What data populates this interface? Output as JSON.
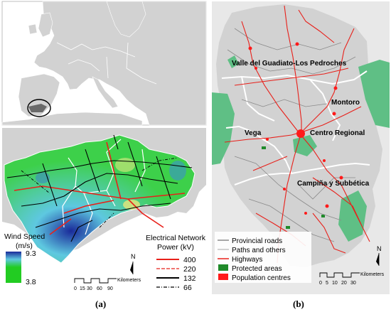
{
  "panel_a": {
    "caption": "(a)",
    "legend_wind": {
      "title": "Wind Speed",
      "unit": "(m/s)",
      "max": "9.3",
      "min": "3.8",
      "color_high": "#1a2a9a",
      "color_mid": "#5ec8e0",
      "color_low": "#22cc22"
    },
    "legend_network": {
      "title": "Electrical Network",
      "subtitle": "Power (kV)",
      "items": [
        {
          "label": "400",
          "color": "#e8201a",
          "style": "solid-thick"
        },
        {
          "label": "220",
          "color": "#e8201a",
          "style": "dash"
        },
        {
          "label": "132",
          "color": "#000000",
          "style": "solid"
        },
        {
          "label": "66",
          "color": "#000000",
          "style": "dashdot"
        }
      ]
    },
    "scale": {
      "ticks": [
        "0",
        "15",
        "30",
        "60",
        "90"
      ],
      "unit": "Kilometers"
    },
    "north": "N"
  },
  "panel_b": {
    "caption": "(b)",
    "regions": [
      "Valle del Guadiato-Los Pedroches",
      "Montoro",
      "Vega",
      "Centro Regional",
      "Campiña y Subbética"
    ],
    "legend": [
      {
        "label": "Provincial  roads",
        "color": "#8a8a8a",
        "kind": "line"
      },
      {
        "label": "Paths and others",
        "color": "#b5b5b5",
        "kind": "line"
      },
      {
        "label": "Highways",
        "color": "#e8201a",
        "kind": "line"
      },
      {
        "label": "Protected areas",
        "color": "#1f8a2a",
        "kind": "box"
      },
      {
        "label": "Population centres",
        "color": "#ff1a1a",
        "kind": "box"
      }
    ],
    "scale": {
      "ticks": [
        "0",
        "5",
        "10",
        "20",
        "30"
      ],
      "unit": "Kilometers"
    },
    "north": "N"
  },
  "colors": {
    "land": "#d2d2d2",
    "sea": "#ffffff",
    "protected": "#5fbf85",
    "road": "#e8201a",
    "boundary": "#ffffff"
  }
}
